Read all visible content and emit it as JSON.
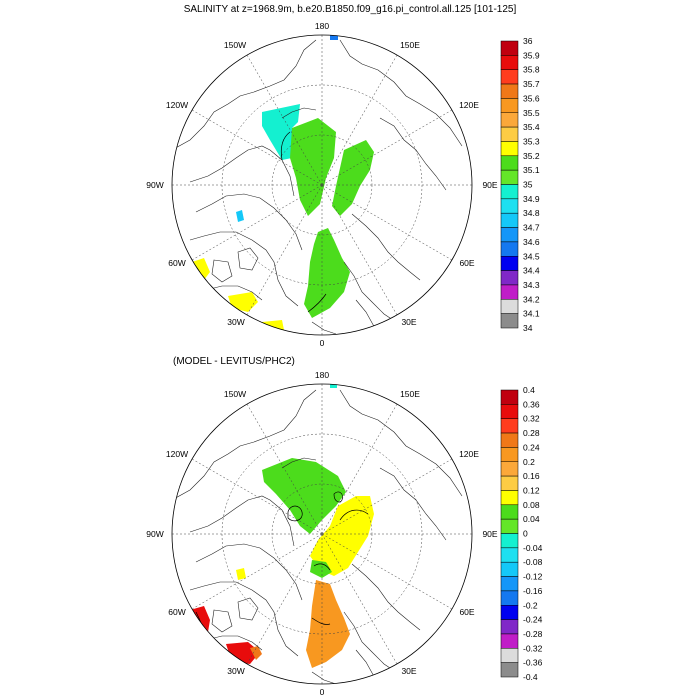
{
  "panels": [
    {
      "title": "SALINITY at z=1968.9m, b.e20.B1850.f09_g16.pi_control.all.125 [101-125]",
      "lon_labels": [
        "180",
        "150E",
        "120E",
        "90E",
        "60E",
        "30E",
        "0",
        "30W",
        "60W",
        "90W",
        "120W",
        "150W"
      ],
      "colorbar": {
        "labels": [
          "36",
          "35.9",
          "35.8",
          "35.7",
          "35.6",
          "35.5",
          "35.4",
          "35.3",
          "35.2",
          "35.1",
          "35",
          "34.9",
          "34.8",
          "34.7",
          "34.6",
          "34.5",
          "34.4",
          "34.3",
          "34.2",
          "34.1",
          "34"
        ],
        "colors": [
          "#c0000f",
          "#e80c0c",
          "#ff3c1e",
          "#f07818",
          "#f89820",
          "#fba83a",
          "#fdcc44",
          "#ffff00",
          "#4cdc1c",
          "#64e628",
          "#14f0d0",
          "#1ee0f0",
          "#14c8f8",
          "#1496f8",
          "#1478f0",
          "#0000f0",
          "#8028c8",
          "#c01ec8",
          "#dcdcdc",
          "#8c8c8c"
        ]
      }
    },
    {
      "title": "(MODEL - LEVITUS/PHC2)",
      "lon_labels": [
        "180",
        "150E",
        "120E",
        "90E",
        "60E",
        "30E",
        "0",
        "30W",
        "60W",
        "90W",
        "120W",
        "150W"
      ],
      "colorbar": {
        "labels": [
          "0.4",
          "0.36",
          "0.32",
          "0.28",
          "0.24",
          "0.2",
          "0.16",
          "0.12",
          "0.08",
          "0.04",
          "0",
          "-0.04",
          "-0.08",
          "-0.12",
          "-0.16",
          "-0.2",
          "-0.24",
          "-0.28",
          "-0.32",
          "-0.36",
          "-0.4"
        ],
        "colors": [
          "#c0000f",
          "#e80c0c",
          "#ff3c1e",
          "#f07818",
          "#f89820",
          "#fba83a",
          "#fdcc44",
          "#ffff00",
          "#4cdc1c",
          "#64e628",
          "#14f0d0",
          "#1ee0f0",
          "#14c8f8",
          "#1496f8",
          "#1478f0",
          "#0000f0",
          "#8028c8",
          "#c01ec8",
          "#dcdcdc",
          "#8c8c8c"
        ]
      }
    }
  ]
}
